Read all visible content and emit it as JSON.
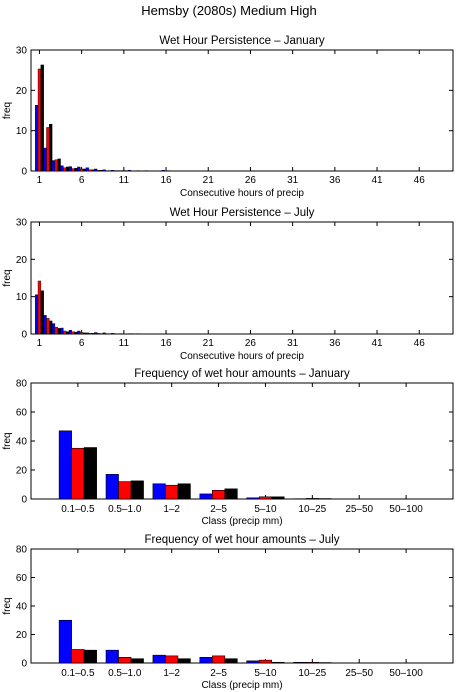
{
  "figure_title": "Hemsby (2080s) Medium High",
  "colors": {
    "blue": "#0000ff",
    "red": "#ff0000",
    "black": "#000000"
  },
  "chart_data": [
    {
      "type": "bar",
      "title": "Wet Hour Persistence – January",
      "xlabel": "Consecutive hours of precip",
      "ylabel": "freq",
      "ylim": [
        0,
        30
      ],
      "yticks": [
        0,
        10,
        20,
        30
      ],
      "xlim": [
        0,
        50
      ],
      "xticks": [
        1,
        6,
        11,
        16,
        21,
        26,
        31,
        36,
        41,
        46
      ],
      "x": [
        1,
        2,
        3,
        4,
        5,
        6,
        7,
        8,
        9,
        10,
        11,
        12,
        13,
        14,
        15,
        16
      ],
      "series": [
        {
          "color": "blue",
          "values": [
            16.3,
            5.7,
            2.6,
            1.3,
            1.1,
            1.0,
            0.8,
            0.5,
            0.3,
            0.2,
            0.1,
            0.2,
            0.1,
            0.1,
            0,
            0.2
          ]
        },
        {
          "color": "red",
          "values": [
            25.3,
            10.8,
            2.8,
            0.8,
            0.6,
            0.5,
            0.3,
            0.2,
            0.1,
            0.1,
            0.1,
            0,
            0,
            0,
            0,
            0
          ]
        },
        {
          "color": "black",
          "values": [
            26.3,
            11.6,
            3.0,
            1.0,
            0.7,
            0.5,
            0.3,
            0.2,
            0.1,
            0.1,
            0.1,
            0,
            0,
            0,
            0,
            0.1
          ]
        }
      ]
    },
    {
      "type": "bar",
      "title": "Wet Hour Persistence – July",
      "xlabel": "Consecutive hours of precip",
      "ylabel": "freq",
      "ylim": [
        0,
        30
      ],
      "yticks": [
        0,
        10,
        20,
        30
      ],
      "xlim": [
        0,
        50
      ],
      "xticks": [
        1,
        6,
        11,
        16,
        21,
        26,
        31,
        36,
        41,
        46
      ],
      "x": [
        1,
        2,
        3,
        4,
        5,
        6,
        7,
        8,
        9,
        10,
        11,
        12,
        13
      ],
      "series": [
        {
          "color": "blue",
          "values": [
            10.5,
            5.0,
            2.8,
            1.6,
            1.0,
            0.8,
            0.3,
            0.4,
            0.3,
            0.2,
            0.1,
            0.1,
            0.1
          ]
        },
        {
          "color": "red",
          "values": [
            14.2,
            4.2,
            1.8,
            0.8,
            0.6,
            0.4,
            0.2,
            0.2,
            0.1,
            0.1,
            0,
            0.1,
            0
          ]
        },
        {
          "color": "black",
          "values": [
            11.6,
            3.5,
            1.5,
            0.6,
            0.5,
            0.3,
            0.2,
            0.1,
            0.1,
            0,
            0,
            0,
            0
          ]
        }
      ]
    },
    {
      "type": "bar",
      "title": "Frequency of wet hour amounts – January",
      "xlabel": "Class (precip mm)",
      "ylabel": "freq",
      "ylim": [
        0,
        80
      ],
      "yticks": [
        0,
        20,
        40,
        60,
        80
      ],
      "categories": [
        "0.1–0.5",
        "0.5–1.0",
        "1–2",
        "2–5",
        "5–10",
        "10–25",
        "25–50",
        "50–100"
      ],
      "series": [
        {
          "color": "blue",
          "values": [
            47,
            17,
            10.5,
            3.5,
            0.8,
            0.2,
            0,
            0
          ]
        },
        {
          "color": "red",
          "values": [
            35,
            12,
            9.5,
            6,
            1.5,
            0.4,
            0,
            0
          ]
        },
        {
          "color": "black",
          "values": [
            35.5,
            12.5,
            10.5,
            7,
            1.5,
            0.3,
            0,
            0
          ]
        }
      ]
    },
    {
      "type": "bar",
      "title": "Frequency of wet hour amounts – July",
      "xlabel": "Class (precip mm)",
      "ylabel": "freq",
      "ylim": [
        0,
        80
      ],
      "yticks": [
        0,
        20,
        40,
        60,
        80
      ],
      "categories": [
        "0.1–0.5",
        "0.5–1.0",
        "1–2",
        "2–5",
        "5–10",
        "10–25",
        "25–50",
        "50–100"
      ],
      "series": [
        {
          "color": "blue",
          "values": [
            30,
            9,
            5.5,
            4,
            1.5,
            0.5,
            0,
            0
          ]
        },
        {
          "color": "red",
          "values": [
            9.5,
            4,
            5,
            5,
            2,
            0.5,
            0,
            0
          ]
        },
        {
          "color": "black",
          "values": [
            9,
            3,
            3,
            3,
            0.5,
            0.3,
            0,
            0
          ]
        }
      ]
    }
  ]
}
